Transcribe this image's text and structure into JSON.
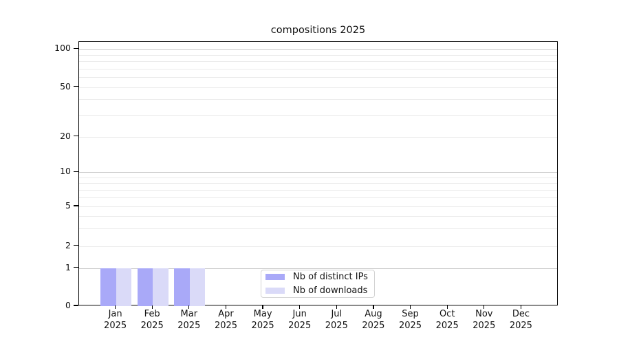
{
  "title": "compositions 2025",
  "chart_data": {
    "type": "bar",
    "title": "compositions 2025",
    "categories": [
      "Jan 2025",
      "Feb 2025",
      "Mar 2025",
      "Apr 2025",
      "May 2025",
      "Jun 2025",
      "Jul 2025",
      "Aug 2025",
      "Sep 2025",
      "Oct 2025",
      "Nov 2025",
      "Dec 2025"
    ],
    "months": [
      "Jan",
      "Feb",
      "Mar",
      "Apr",
      "May",
      "Jun",
      "Jul",
      "Aug",
      "Sep",
      "Oct",
      "Nov",
      "Dec"
    ],
    "year": "2025",
    "series": [
      {
        "name": "Nb of distinct IPs",
        "color": "#a9a9f8",
        "values": [
          1,
          1,
          1,
          0,
          0,
          0,
          0,
          0,
          0,
          0,
          0,
          0
        ]
      },
      {
        "name": "Nb of downloads",
        "color": "#dadaf8",
        "values": [
          1,
          1,
          1,
          0,
          0,
          0,
          0,
          0,
          0,
          0,
          0,
          0
        ]
      }
    ],
    "y_ticks": [
      0,
      1,
      2,
      5,
      10,
      20,
      50,
      100
    ],
    "y_minor_gridlines": [
      3,
      4,
      6,
      7,
      8,
      9,
      30,
      40,
      60,
      70,
      80,
      90
    ],
    "yscale": "log-like (0 pinned to baseline)",
    "grid": true,
    "legend_position": "inside-bottom-center",
    "colors": {
      "major_gridline": "#c8c8c8",
      "minor_gridline": "#eaeaea",
      "axis": "#000000",
      "text": "#111111",
      "background": "#ffffff"
    }
  }
}
